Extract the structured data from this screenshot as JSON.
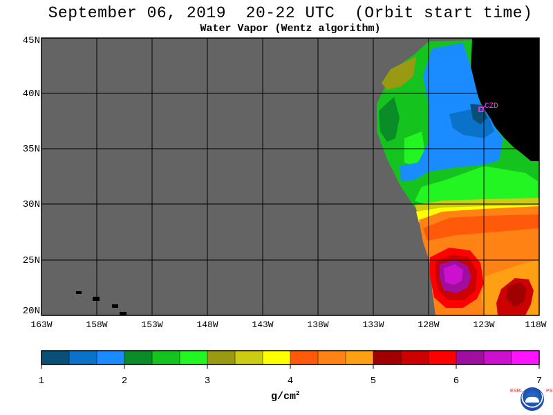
{
  "title": "September 06, 2019  20-22 UTC  (Orbit start time)",
  "subtitle": "Water Vapor (Wentz algorithm)",
  "lat_labels": [
    "45N",
    "40N",
    "35N",
    "30N",
    "25N",
    "20N"
  ],
  "lon_labels": [
    "163W",
    "158W",
    "153W",
    "148W",
    "143W",
    "138W",
    "133W",
    "128W",
    "123W",
    "118W"
  ],
  "station_label": "CZD",
  "colorbar": {
    "tick_labels": [
      "1",
      "2",
      "3",
      "4",
      "5",
      "6",
      "7"
    ],
    "unit": "g/cm",
    "unit_exponent": "2",
    "colors": [
      "#0a4f78",
      "#0a72c8",
      "#1a8cff",
      "#0a8c28",
      "#14c31e",
      "#23f523",
      "#9a9a12",
      "#cccc12",
      "#ffff00",
      "#ff5a0a",
      "#ff8214",
      "#ffa014",
      "#a00000",
      "#cd0000",
      "#ff0000",
      "#a00ea0",
      "#cd10cd",
      "#ff14ff"
    ]
  },
  "colors": {
    "background_no_data": "#646464",
    "land": "#000000",
    "station_marker": "#ff33ff"
  },
  "logo": {
    "left_letters": "ESRL",
    "right_letters": "PSD",
    "name": "NOAA"
  },
  "icons": [
    "noaa-logo-icon"
  ]
}
